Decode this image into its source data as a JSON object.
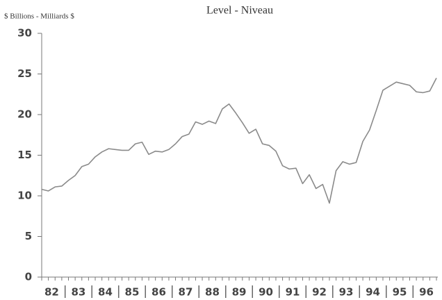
{
  "chart_data": {
    "type": "line",
    "title": "Level - Niveau",
    "y_axis_label": "$ Billions - Milliards $",
    "categories": [
      "82",
      null,
      null,
      null,
      "83",
      null,
      null,
      null,
      "84",
      null,
      null,
      null,
      "85",
      null,
      null,
      null,
      "86",
      null,
      null,
      null,
      "87",
      null,
      null,
      null,
      "88",
      null,
      null,
      null,
      "89",
      null,
      null,
      null,
      "90",
      null,
      null,
      null,
      "91",
      null,
      null,
      null,
      "92",
      null,
      null,
      null,
      "93",
      null,
      null,
      null,
      "94",
      null,
      null,
      null,
      "95",
      null,
      null,
      null,
      "96",
      null,
      null,
      null
    ],
    "values": [
      10.8,
      10.6,
      11.1,
      11.2,
      11.9,
      12.5,
      13.6,
      13.9,
      14.8,
      15.4,
      15.8,
      15.7,
      15.6,
      15.6,
      16.4,
      16.6,
      15.1,
      15.5,
      15.4,
      15.7,
      16.4,
      17.3,
      17.6,
      19.1,
      18.8,
      19.2,
      18.9,
      20.7,
      21.3,
      20.2,
      19.0,
      17.7,
      18.2,
      16.4,
      16.2,
      15.5,
      13.7,
      13.3,
      13.4,
      11.5,
      12.6,
      10.9,
      11.4,
      9.1,
      13.1,
      14.2,
      13.9,
      14.1,
      16.7,
      18.1,
      20.5,
      23.0,
      23.5,
      24.0,
      23.8,
      23.6,
      22.8,
      22.7,
      22.9,
      24.5
    ],
    "color": "#8a8a8a",
    "ylim": [
      0,
      30
    ],
    "yticks": [
      0,
      5,
      10,
      15,
      20,
      25,
      30
    ],
    "grid": false
  }
}
